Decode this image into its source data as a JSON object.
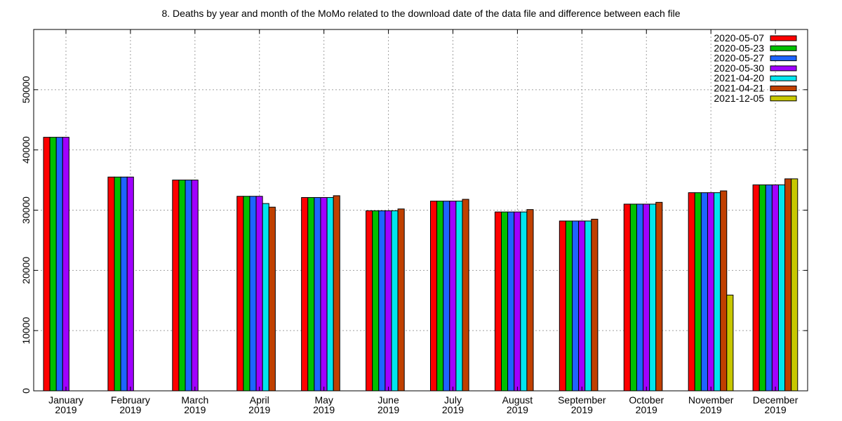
{
  "chart_data": {
    "type": "bar",
    "title": "8. Deaths by year and month of the MoMo related to the download date of the data file and difference between each file",
    "xlabel": "",
    "ylabel": "",
    "ylim": [
      0,
      60000
    ],
    "yticks": [
      0,
      10000,
      20000,
      30000,
      40000,
      50000
    ],
    "grid": true,
    "legend_position": "top-right",
    "categories": [
      [
        "January",
        "2019"
      ],
      [
        "February",
        "2019"
      ],
      [
        "March",
        "2019"
      ],
      [
        "April",
        "2019"
      ],
      [
        "May",
        "2019"
      ],
      [
        "June",
        "2019"
      ],
      [
        "July",
        "2019"
      ],
      [
        "August",
        "2019"
      ],
      [
        "September",
        "2019"
      ],
      [
        "October",
        "2019"
      ],
      [
        "November",
        "2019"
      ],
      [
        "December",
        "2019"
      ]
    ],
    "series": [
      {
        "name": "2020-05-07",
        "color": "#ff0000",
        "values": [
          42100,
          35500,
          35000,
          32300,
          32100,
          29900,
          31500,
          29700,
          28200,
          31000,
          32900,
          34200
        ]
      },
      {
        "name": "2020-05-23",
        "color": "#00c000",
        "values": [
          42100,
          35500,
          35000,
          32300,
          32100,
          29900,
          31500,
          29700,
          28200,
          31000,
          32900,
          34200
        ]
      },
      {
        "name": "2020-05-27",
        "color": "#1e64ff",
        "values": [
          42100,
          35500,
          35000,
          32300,
          32100,
          29900,
          31500,
          29700,
          28200,
          31000,
          32900,
          34200
        ]
      },
      {
        "name": "2020-05-30",
        "color": "#a000ff",
        "values": [
          42100,
          35500,
          35000,
          32300,
          32100,
          29900,
          31500,
          29700,
          28200,
          31000,
          32900,
          34200
        ]
      },
      {
        "name": "2021-04-20",
        "color": "#00e5ee",
        "values": [
          null,
          null,
          null,
          31100,
          32100,
          29900,
          31500,
          29700,
          28200,
          31000,
          32900,
          34200
        ]
      },
      {
        "name": "2021-04-21",
        "color": "#c04000",
        "values": [
          null,
          null,
          null,
          30500,
          32400,
          30200,
          31800,
          30100,
          28500,
          31300,
          33200,
          35200
        ]
      },
      {
        "name": "2021-12-05",
        "color": "#c8c800",
        "values": [
          null,
          null,
          null,
          null,
          null,
          null,
          null,
          null,
          null,
          null,
          15900,
          35200
        ]
      }
    ]
  }
}
